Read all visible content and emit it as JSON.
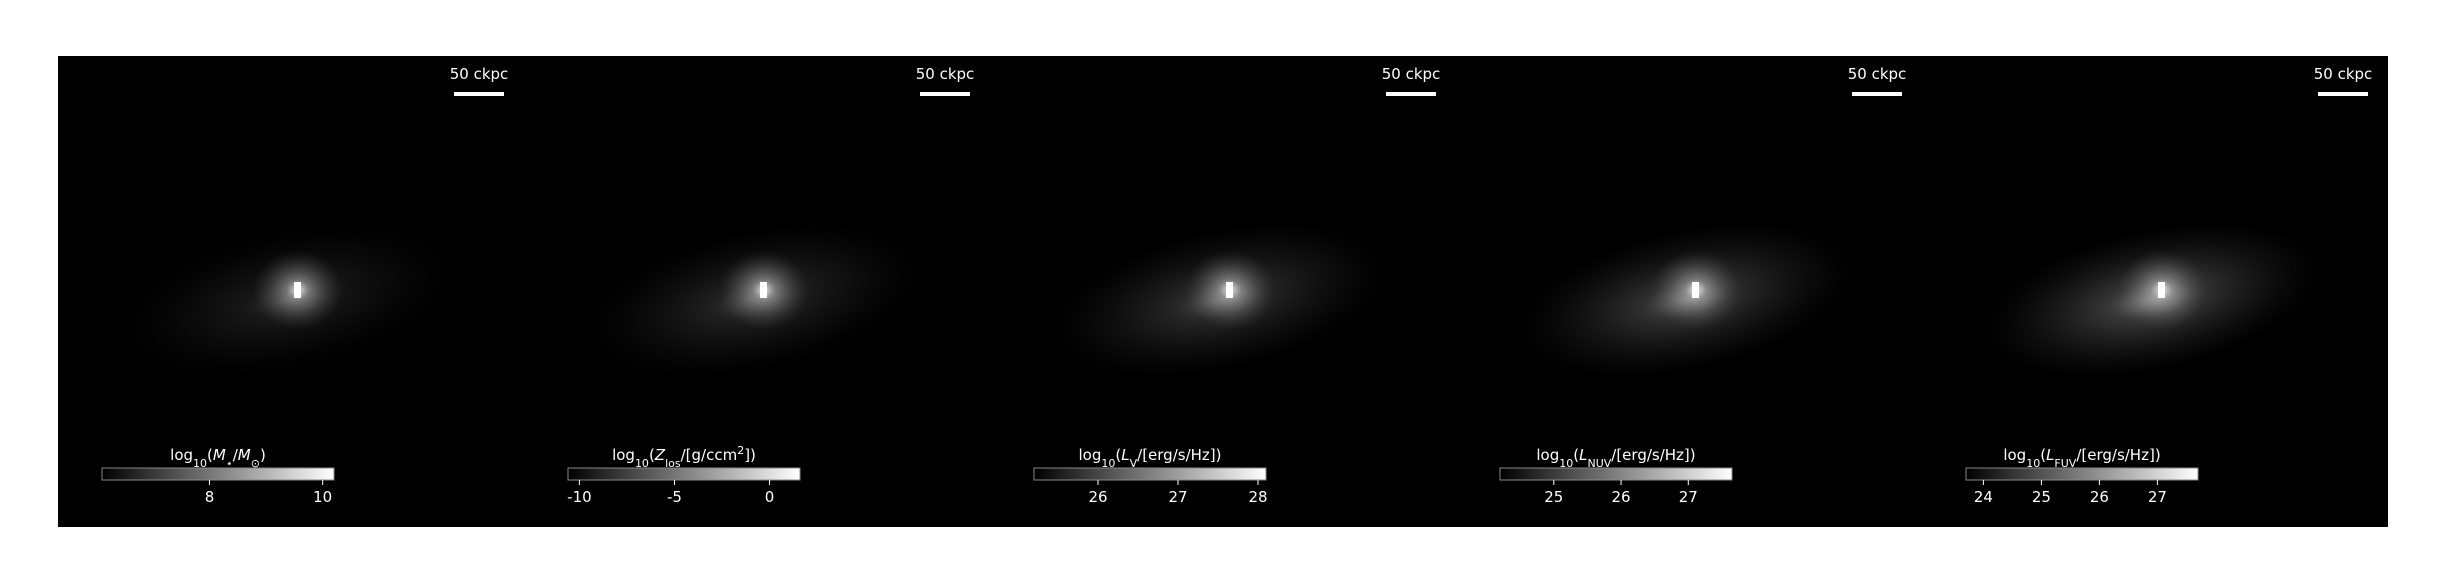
{
  "panels": [
    {
      "scale_bar_label": "50 ckpc",
      "colorbar": {
        "label": [
          {
            "text": "log"
          },
          {
            "text": "10",
            "sub": true
          },
          {
            "text": "("
          },
          {
            "text": "M",
            "italic": true
          },
          {
            "text": "⋆",
            "sub": true
          },
          {
            "text": "/"
          },
          {
            "text": "M",
            "italic": true
          },
          {
            "text": "⊙",
            "sub": true
          },
          {
            "text": ")"
          }
        ],
        "range": [
          6.1,
          10.2
        ],
        "ticks": [
          8,
          10
        ]
      }
    },
    {
      "scale_bar_label": "50 ckpc",
      "colorbar": {
        "label": [
          {
            "text": "log"
          },
          {
            "text": "10",
            "sub": true
          },
          {
            "text": "("
          },
          {
            "text": "Z",
            "italic": true
          },
          {
            "text": "los",
            "sub": true
          },
          {
            "text": "/[g/ccm"
          },
          {
            "text": "2",
            "sup": true
          },
          {
            "text": "])"
          }
        ],
        "range": [
          -10.6,
          1.6
        ],
        "ticks": [
          -10,
          -5,
          0
        ]
      }
    },
    {
      "scale_bar_label": "50 ckpc",
      "colorbar": {
        "label": [
          {
            "text": "log"
          },
          {
            "text": "10",
            "sub": true
          },
          {
            "text": "("
          },
          {
            "text": "L",
            "italic": true
          },
          {
            "text": "V",
            "sub": true
          },
          {
            "text": "/[erg/s/Hz])"
          }
        ],
        "range": [
          25.2,
          28.1
        ],
        "ticks": [
          26,
          27,
          28
        ]
      }
    },
    {
      "scale_bar_label": "50 ckpc",
      "colorbar": {
        "label": [
          {
            "text": "log"
          },
          {
            "text": "10",
            "sub": true
          },
          {
            "text": "("
          },
          {
            "text": "L",
            "italic": true
          },
          {
            "text": "NUV",
            "sub": true
          },
          {
            "text": "/[erg/s/Hz])"
          }
        ],
        "range": [
          24.2,
          27.65
        ],
        "ticks": [
          25,
          26,
          27
        ]
      }
    },
    {
      "scale_bar_label": "50 ckpc",
      "colorbar": {
        "label": [
          {
            "text": "log"
          },
          {
            "text": "10",
            "sub": true
          },
          {
            "text": "("
          },
          {
            "text": "L",
            "italic": true
          },
          {
            "text": "FUV",
            "sub": true
          },
          {
            "text": "/[erg/s/Hz])"
          }
        ],
        "range": [
          23.7,
          27.7
        ],
        "ticks": [
          24,
          25,
          26,
          27
        ]
      }
    }
  ]
}
